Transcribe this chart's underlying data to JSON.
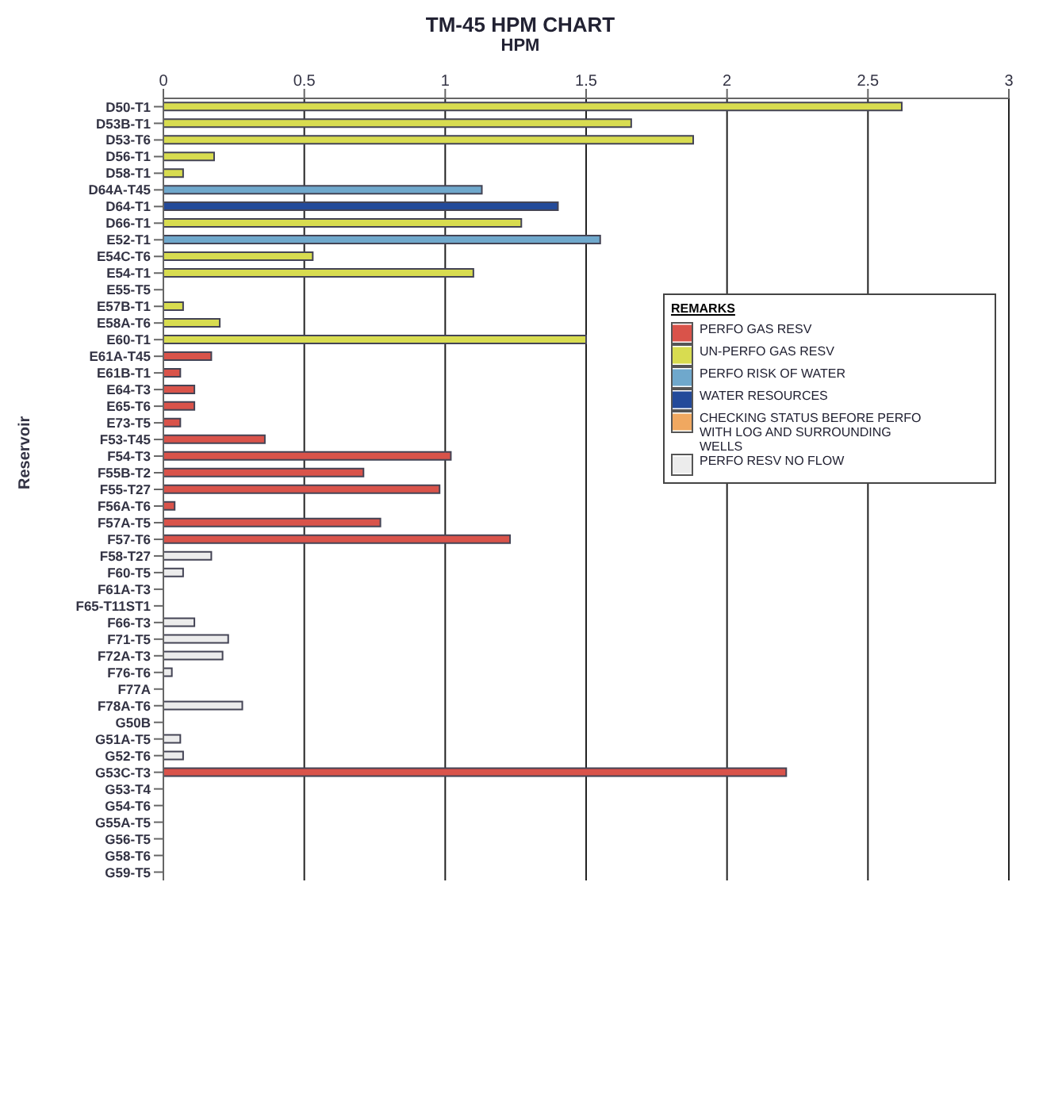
{
  "chart_data": {
    "type": "bar",
    "orientation": "horizontal",
    "stacked": true,
    "title": "TM-45 HPM CHART",
    "xlabel": "HPM",
    "ylabel": "Reservoir",
    "legend_title": "REMARKS",
    "legend": "top right",
    "grid": "x",
    "xlim": [
      0,
      3
    ],
    "xticks": [
      0,
      0.5,
      1,
      1.5,
      2,
      2.5,
      3
    ],
    "categories": [
      "D50-T1",
      "D53B-T1",
      "D53-T6",
      "D56-T1",
      "D58-T1",
      "D64A-T45",
      "D64-T1",
      "D66-T1",
      "E52-T1",
      "E54C-T6",
      "E54-T1",
      "E55-T5",
      "E57B-T1",
      "E58A-T6",
      "E60-T1",
      "E61A-T45",
      "E61B-T1",
      "E64-T3",
      "E65-T6",
      "E73-T5",
      "F53-T45",
      "F54-T3",
      "F55B-T2",
      "F55-T27",
      "F56A-T6",
      "F57A-T5",
      "F57-T6",
      "F58-T27",
      "F60-T5",
      "F61A-T3",
      "F65-T11ST1",
      "F66-T3",
      "F71-T5",
      "F72A-T3",
      "F76-T6",
      "F77A",
      "F78A-T6",
      "G50B",
      "G51A-T5",
      "G52-T6",
      "G53C-T3",
      "G53-T4",
      "G54-T6",
      "G55A-T5",
      "G56-T5",
      "G58-T6",
      "G59-T5"
    ],
    "series": [
      {
        "name": "PERFO GAS RESV",
        "color": "#d9534a",
        "values": [
          null,
          null,
          null,
          null,
          null,
          null,
          null,
          null,
          null,
          null,
          null,
          null,
          null,
          null,
          null,
          0.17,
          0.06,
          0.11,
          0.11,
          0.06,
          0.36,
          1.02,
          0.71,
          0.98,
          0.04,
          0.77,
          1.23,
          null,
          null,
          null,
          null,
          null,
          null,
          null,
          null,
          null,
          null,
          null,
          null,
          null,
          2.21,
          null,
          null,
          null,
          null,
          null,
          null
        ]
      },
      {
        "name": "UN-PERFO GAS RESV",
        "color": "#d8dc50",
        "values": [
          2.62,
          1.66,
          1.88,
          0.18,
          0.07,
          null,
          null,
          1.27,
          null,
          0.53,
          1.1,
          0,
          0.07,
          0.2,
          1.5,
          null,
          null,
          null,
          null,
          null,
          null,
          null,
          null,
          null,
          null,
          null,
          null,
          null,
          null,
          null,
          null,
          null,
          null,
          null,
          null,
          null,
          null,
          null,
          null,
          null,
          null,
          null,
          null,
          null,
          null,
          null,
          null
        ]
      },
      {
        "name": "PERFO RISK OF WATER",
        "color": "#6fa8cc",
        "values": [
          null,
          null,
          null,
          null,
          null,
          1.13,
          null,
          null,
          1.55,
          null,
          null,
          null,
          null,
          null,
          null,
          null,
          null,
          null,
          null,
          null,
          null,
          null,
          null,
          null,
          null,
          null,
          null,
          null,
          null,
          null,
          null,
          null,
          null,
          null,
          null,
          null,
          null,
          null,
          null,
          null,
          null,
          null,
          null,
          null,
          null,
          null,
          null
        ]
      },
      {
        "name": "WATER RESOURCES",
        "color": "#234a9a",
        "values": [
          null,
          null,
          null,
          null,
          null,
          null,
          1.4,
          null,
          null,
          null,
          null,
          null,
          null,
          null,
          null,
          null,
          null,
          null,
          null,
          null,
          null,
          null,
          null,
          null,
          null,
          null,
          null,
          null,
          null,
          null,
          null,
          null,
          null,
          null,
          null,
          null,
          null,
          null,
          null,
          null,
          null,
          null,
          null,
          null,
          null,
          null,
          null
        ]
      },
      {
        "name": "CHECKING STATUS BEFORE PERFO WITH LOG AND SURROUNDING WELLS",
        "color": "#f0a860",
        "values": [
          null,
          null,
          null,
          null,
          null,
          null,
          null,
          null,
          null,
          null,
          null,
          null,
          null,
          null,
          null,
          null,
          null,
          null,
          null,
          null,
          null,
          null,
          null,
          null,
          null,
          null,
          null,
          null,
          null,
          null,
          null,
          null,
          null,
          null,
          null,
          null,
          null,
          null,
          null,
          null,
          null,
          null,
          null,
          null,
          null,
          null,
          null
        ]
      },
      {
        "name": "PERFO RESV NO FLOW",
        "color": "#ececec",
        "values": [
          null,
          null,
          null,
          null,
          null,
          null,
          null,
          null,
          null,
          null,
          null,
          null,
          null,
          null,
          null,
          null,
          null,
          null,
          null,
          null,
          null,
          null,
          null,
          null,
          null,
          null,
          null,
          0.17,
          0.07,
          0,
          0,
          0.11,
          0.23,
          0.21,
          0.03,
          0,
          0.28,
          0,
          0.06,
          0.07,
          null,
          0,
          0,
          0,
          0,
          0,
          0
        ]
      }
    ]
  }
}
